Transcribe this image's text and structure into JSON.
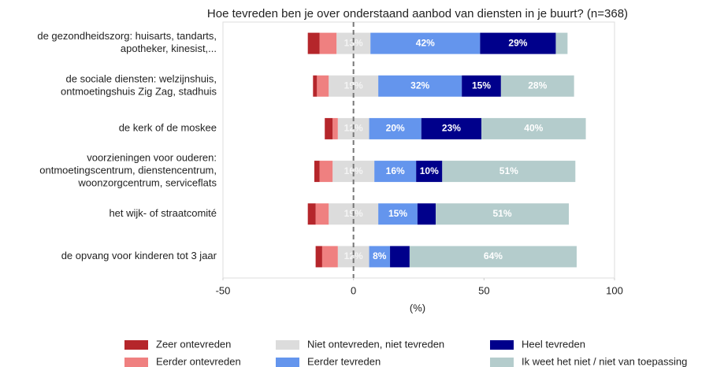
{
  "chart_data": {
    "type": "diverging-bar",
    "title": "Hoe tevreden ben je over onderstaand aanbod van diensten in je buurt?  (n=368)",
    "x_label": "(%)",
    "categories": [
      "de gezondheidszorg: huisarts, tandarts,\napotheker, kinesist,...",
      "de sociale diensten: welzijnshuis,\nontmoetingshuis Zig Zag, stadhuis",
      "de kerk of de moskee",
      "voorzieningen voor ouderen:\nontmoetingscentrum, dienstencentrum,\nwoonzorgcentrum, serviceflats",
      "het wijk- of straatcomité",
      "de opvang voor kinderen tot 3 jaar"
    ],
    "xlim": [
      -50,
      100
    ],
    "xticks": [
      -50,
      0,
      50,
      100
    ],
    "grid": false,
    "series": [
      {
        "name": "Zeer ontevreden",
        "color": "#b5262b",
        "side": "negative",
        "values": [
          4.5,
          1.5,
          3,
          2,
          3,
          2.5
        ],
        "value_labels": [
          null,
          null,
          null,
          null,
          null,
          null
        ]
      },
      {
        "name": "Eerder ontevreden",
        "color": "#ef8080",
        "side": "negative",
        "values": [
          6.5,
          4.5,
          2,
          5,
          5,
          6
        ],
        "value_labels": [
          null,
          null,
          null,
          null,
          null,
          null
        ]
      },
      {
        "name": "Niet ontevreden, niet tevreden",
        "color": "#dcdcdc",
        "side": "center",
        "values": [
          13,
          19,
          12,
          16,
          19,
          12
        ],
        "value_labels": [
          "13%",
          "19%",
          "12%",
          "16%",
          "19%",
          "12%"
        ]
      },
      {
        "name": "Eerder tevreden",
        "color": "#6495ed",
        "side": "positive",
        "values": [
          42,
          32,
          20,
          16,
          15,
          8
        ],
        "value_labels": [
          "42%",
          "32%",
          "20%",
          "16%",
          "15%",
          "8%"
        ]
      },
      {
        "name": "Heel tevreden",
        "color": "#00008b",
        "side": "positive",
        "values": [
          29,
          15,
          23,
          10,
          7,
          7.5
        ],
        "value_labels": [
          "29%",
          "15%",
          "23%",
          "10%",
          null,
          null
        ]
      },
      {
        "name": "Ik weet het niet / niet van toepassing",
        "color": "#b4cccc",
        "side": "positive",
        "values": [
          4.5,
          28,
          40,
          51,
          51,
          64
        ],
        "value_labels": [
          null,
          "28%",
          "40%",
          "51%",
          "51%",
          "64%"
        ]
      }
    ]
  }
}
